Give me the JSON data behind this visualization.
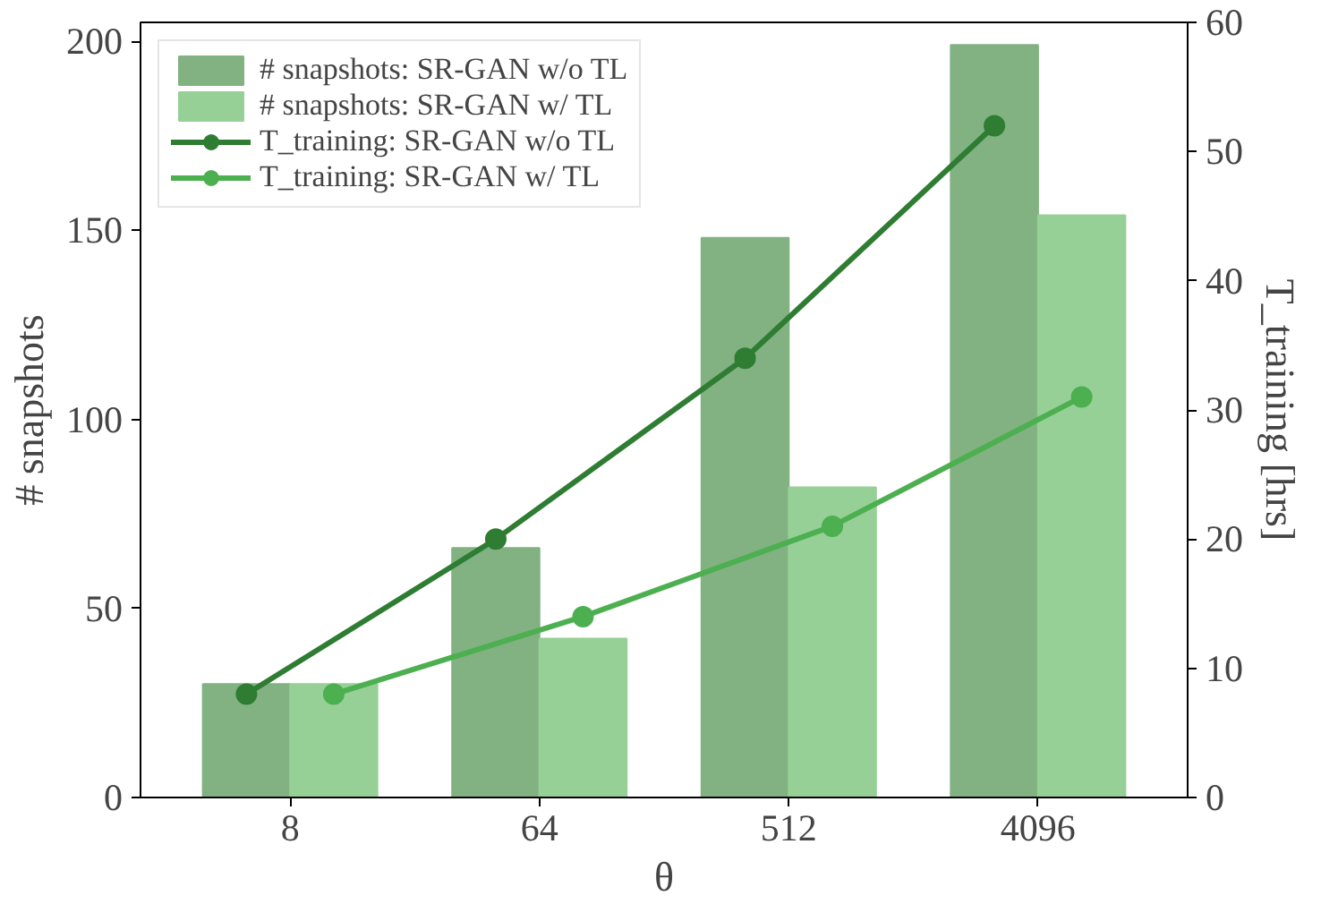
{
  "chart_data": {
    "type": "bar",
    "categories": [
      "8",
      "64",
      "512",
      "4096"
    ],
    "xlabel": "θ",
    "ylabel": "# snapshots",
    "y2label": "T_training [hrs]",
    "ylim": [
      0,
      205
    ],
    "yticks": [
      0,
      50,
      100,
      150,
      200
    ],
    "y2lim": [
      0,
      60
    ],
    "y2ticks": [
      0,
      10,
      20,
      30,
      40,
      50,
      60
    ],
    "legend": "top left",
    "grid": false,
    "marker": "circle",
    "series": [
      {
        "name": "# snapshots: SR-GAN w/o TL",
        "color": "#82b182",
        "values": [
          30,
          66,
          148,
          199
        ]
      },
      {
        "name": "# snapshots: SR-GAN w/ TL",
        "color": "#96d096",
        "values": [
          30,
          42,
          82,
          154
        ]
      },
      {
        "name": "T_training: SR-GAN w/o TL",
        "type": "line",
        "axis": "y2",
        "color": "#2e7d32",
        "values": [
          8,
          20,
          34,
          52
        ]
      },
      {
        "name": "T_training: SR-GAN w/ TL",
        "type": "line",
        "axis": "y2",
        "color": "#4caf50",
        "values": [
          8,
          14,
          21,
          31
        ]
      }
    ]
  }
}
